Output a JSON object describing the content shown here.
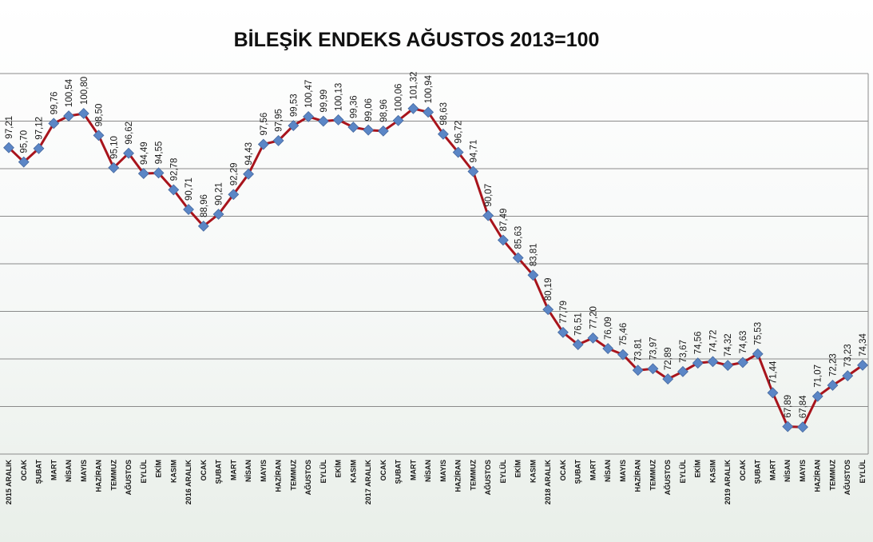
{
  "chart_data": {
    "type": "line",
    "title": "BİLEŞİK ENDEKS AĞUSTOS 2013=100",
    "xlabel": "",
    "ylabel": "",
    "ylim": [
      65,
      105
    ],
    "grid": true,
    "line_color": "#a8141c",
    "marker_color": "#5b86c6",
    "categories": [
      "2015 ARALIK",
      "OCAK",
      "ŞUBAT",
      "MART",
      "NİSAN",
      "MAYIS",
      "HAZİRAN",
      "TEMMUZ",
      "AĞUSTOS",
      "EYLÜL",
      "EKİM",
      "KASIM",
      "2016 ARALIK",
      "OCAK",
      "ŞUBAT",
      "MART",
      "NİSAN",
      "MAYIS",
      "HAZİRAN",
      "TEMMUZ",
      "AĞUSTOS",
      "EYLÜL",
      "EKİM",
      "KASIM",
      "2017 ARALIK",
      "OCAK",
      "ŞUBAT",
      "MART",
      "NİSAN",
      "MAYIS",
      "HAZİRAN",
      "TEMMUZ",
      "AĞUSTOS",
      "EYLÜL",
      "EKİM",
      "KASIM",
      "2018 ARALIK",
      "OCAK",
      "ŞUBAT",
      "MART",
      "NİSAN",
      "MAYIS",
      "HAZİRAN",
      "TEMMUZ",
      "AĞUSTOS",
      "EYLÜL",
      "EKİM",
      "KASIM",
      "2019 ARALIK",
      "OCAK",
      "ŞUBAT",
      "MART",
      "NİSAN",
      "MAYIS",
      "HAZİRAN",
      "TEMMUZ",
      "AĞUSTOS",
      "EYLÜL"
    ],
    "values": [
      97.21,
      95.7,
      97.12,
      99.76,
      100.54,
      100.8,
      98.5,
      95.1,
      96.62,
      94.49,
      94.55,
      92.78,
      90.71,
      88.96,
      90.21,
      92.29,
      94.43,
      97.56,
      97.95,
      99.53,
      100.47,
      99.99,
      100.13,
      99.36,
      99.06,
      98.96,
      100.06,
      101.32,
      100.94,
      98.63,
      96.72,
      94.71,
      90.07,
      87.49,
      85.63,
      83.81,
      80.19,
      77.79,
      76.51,
      77.2,
      76.09,
      75.46,
      73.81,
      73.97,
      72.89,
      73.67,
      74.56,
      74.72,
      74.32,
      74.63,
      75.53,
      71.44,
      67.89,
      67.84,
      71.07,
      72.23,
      73.23,
      74.34
    ],
    "labels": [
      "97,21",
      "95,70",
      "97,12",
      "99,76",
      "100,54",
      "100,80",
      "98,50",
      "95,10",
      "96,62",
      "94,49",
      "94,55",
      "92,78",
      "90,71",
      "88,96",
      "90,21",
      "92,29",
      "94,43",
      "97,56",
      "97,95",
      "99,53",
      "100,47",
      "99,99",
      "100,13",
      "99,36",
      "99,06",
      "98,96",
      "100,06",
      "101,32",
      "100,94",
      "98,63",
      "96,72",
      "94,71",
      "90,07",
      "87,49",
      "85,63",
      "83,81",
      "80,19",
      "77,79",
      "76,51",
      "77,20",
      "76,09",
      "75,46",
      "73,81",
      "73,97",
      "72,89",
      "73,67",
      "74,56",
      "74,72",
      "74,32",
      "74,63",
      "75,53",
      "71,44",
      "67,89",
      "67,84",
      "71,07",
      "72,23",
      "73,23",
      "74,34"
    ]
  }
}
